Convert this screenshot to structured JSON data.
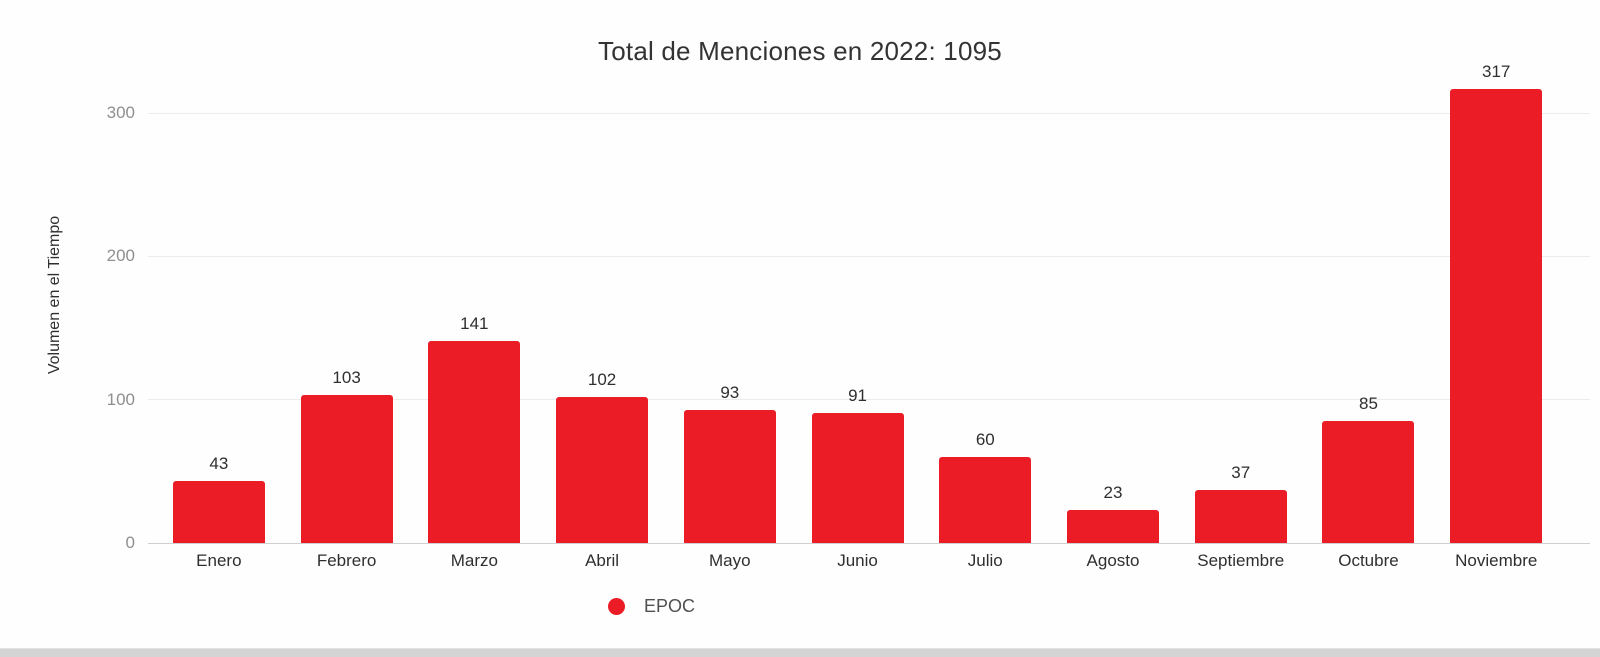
{
  "chart": {
    "title": "Total de Menciones en 2022: 1095",
    "y_axis_title": "Volumen en el Tiempo",
    "legend": {
      "label": "EPOC",
      "marker": "circle-icon",
      "marker_color": "#ec1c26"
    },
    "colors": {
      "bar": "#ec1c26",
      "gridline": "#ececec",
      "axis_baseline": "#cfcfcf",
      "tick_text": "#8f8f8f",
      "label_text": "#2f2f2f",
      "title_text": "#333333"
    }
  },
  "chart_data": {
    "type": "bar",
    "title": "Total de Menciones en 2022: 1095",
    "categories": [
      "Enero",
      "Febrero",
      "Marzo",
      "Abril",
      "Mayo",
      "Junio",
      "Julio",
      "Agosto",
      "Septiembre",
      "Octubre",
      "Noviembre"
    ],
    "values": [
      43,
      103,
      141,
      102,
      93,
      91,
      60,
      23,
      37,
      85,
      317
    ],
    "series_name": "EPOC",
    "total": 1095,
    "xlabel": "",
    "ylabel": "Volumen en el Tiempo",
    "ylim": [
      0,
      300
    ],
    "yticks": [
      0,
      100,
      200,
      300
    ],
    "grid": true,
    "legend_position": "bottom-center",
    "bar_color": "#ec1c26",
    "data_labels": true
  }
}
